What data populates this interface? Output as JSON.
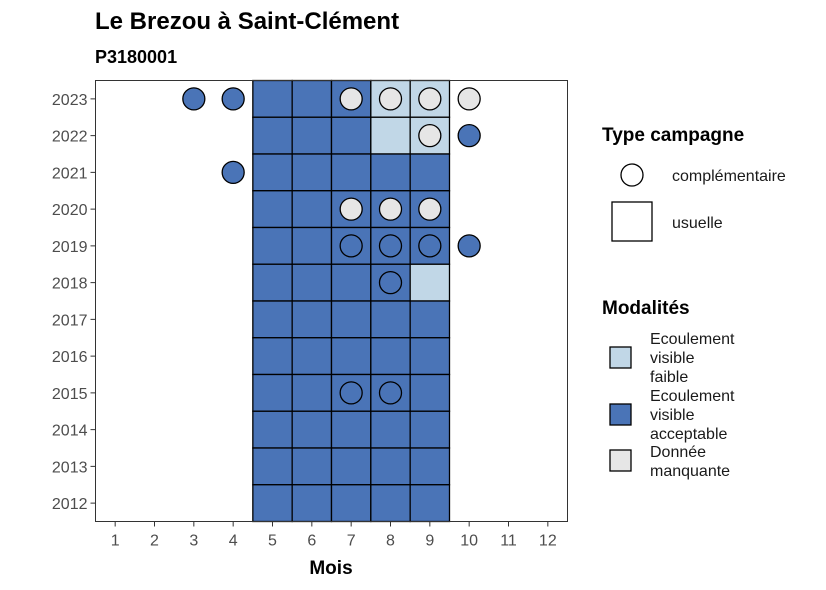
{
  "chart_data": {
    "type": "heatmap",
    "title": "Le Brezou à Saint-Clément",
    "subtitle": "P3180001",
    "xlabel": "Mois",
    "ylabel": "",
    "x_ticks": [
      1,
      2,
      3,
      4,
      5,
      6,
      7,
      8,
      9,
      10,
      11,
      12
    ],
    "y_ticks": [
      2012,
      2013,
      2014,
      2015,
      2016,
      2017,
      2018,
      2019,
      2020,
      2021,
      2022,
      2023
    ],
    "xlim": [
      0.5,
      12.5
    ],
    "ylim": [
      2011.5,
      2023.5
    ],
    "grid": false,
    "colors": {
      "faible": "#c1d7e7",
      "acceptable": "#4a74b7",
      "manquante": "#e6e6e6"
    },
    "legend_type": {
      "title": "Type campagne",
      "items": [
        {
          "shape": "circle",
          "label": "complémentaire"
        },
        {
          "shape": "square",
          "label": "usuelle"
        }
      ]
    },
    "legend_modalites": {
      "title": "Modalités",
      "items": [
        {
          "key": "faible",
          "label_lines": [
            "Ecoulement",
            "visible",
            "faible"
          ]
        },
        {
          "key": "acceptable",
          "label_lines": [
            "Ecoulement",
            "visible",
            "acceptable"
          ]
        },
        {
          "key": "manquante",
          "label_lines": [
            "Donnée",
            "manquante"
          ]
        }
      ]
    },
    "usuelle": [
      {
        "year": 2023,
        "months": [
          5,
          6,
          7
        ],
        "value": "acceptable"
      },
      {
        "year": 2023,
        "months": [
          8,
          9
        ],
        "value": "faible"
      },
      {
        "year": 2022,
        "months": [
          5,
          6,
          7
        ],
        "value": "acceptable"
      },
      {
        "year": 2022,
        "months": [
          8,
          9
        ],
        "value": "faible"
      },
      {
        "year": 2021,
        "months": [
          5,
          6,
          7,
          8,
          9
        ],
        "value": "acceptable"
      },
      {
        "year": 2020,
        "months": [
          5,
          6,
          7,
          8,
          9
        ],
        "value": "acceptable"
      },
      {
        "year": 2019,
        "months": [
          5,
          6,
          7,
          8,
          9
        ],
        "value": "acceptable"
      },
      {
        "year": 2018,
        "months": [
          5,
          6,
          7,
          8
        ],
        "value": "acceptable"
      },
      {
        "year": 2018,
        "months": [
          9
        ],
        "value": "faible"
      },
      {
        "year": 2017,
        "months": [
          5,
          6,
          7,
          8,
          9
        ],
        "value": "acceptable"
      },
      {
        "year": 2016,
        "months": [
          5,
          6,
          7,
          8,
          9
        ],
        "value": "acceptable"
      },
      {
        "year": 2015,
        "months": [
          5,
          6,
          7,
          8,
          9
        ],
        "value": "acceptable"
      },
      {
        "year": 2014,
        "months": [
          5,
          6,
          7,
          8,
          9
        ],
        "value": "acceptable"
      },
      {
        "year": 2013,
        "months": [
          5,
          6,
          7,
          8,
          9
        ],
        "value": "acceptable"
      },
      {
        "year": 2012,
        "months": [
          5,
          6,
          7,
          8,
          9
        ],
        "value": "acceptable"
      }
    ],
    "complementaire": [
      {
        "year": 2023,
        "month": 3,
        "value": "acceptable"
      },
      {
        "year": 2023,
        "month": 4,
        "value": "acceptable"
      },
      {
        "year": 2023,
        "month": 7,
        "value": "manquante"
      },
      {
        "year": 2023,
        "month": 8,
        "value": "manquante"
      },
      {
        "year": 2023,
        "month": 9,
        "value": "manquante"
      },
      {
        "year": 2023,
        "month": 10,
        "value": "manquante"
      },
      {
        "year": 2022,
        "month": 9,
        "value": "manquante"
      },
      {
        "year": 2022,
        "month": 10,
        "value": "acceptable"
      },
      {
        "year": 2021,
        "month": 4,
        "value": "acceptable"
      },
      {
        "year": 2020,
        "month": 7,
        "value": "manquante"
      },
      {
        "year": 2020,
        "month": 8,
        "value": "manquante"
      },
      {
        "year": 2020,
        "month": 9,
        "value": "manquante"
      },
      {
        "year": 2019,
        "month": 7,
        "value": "acceptable"
      },
      {
        "year": 2019,
        "month": 8,
        "value": "acceptable"
      },
      {
        "year": 2019,
        "month": 9,
        "value": "acceptable"
      },
      {
        "year": 2019,
        "month": 10,
        "value": "acceptable"
      },
      {
        "year": 2018,
        "month": 8,
        "value": "acceptable"
      },
      {
        "year": 2015,
        "month": 7,
        "value": "acceptable"
      },
      {
        "year": 2015,
        "month": 8,
        "value": "acceptable"
      }
    ]
  }
}
